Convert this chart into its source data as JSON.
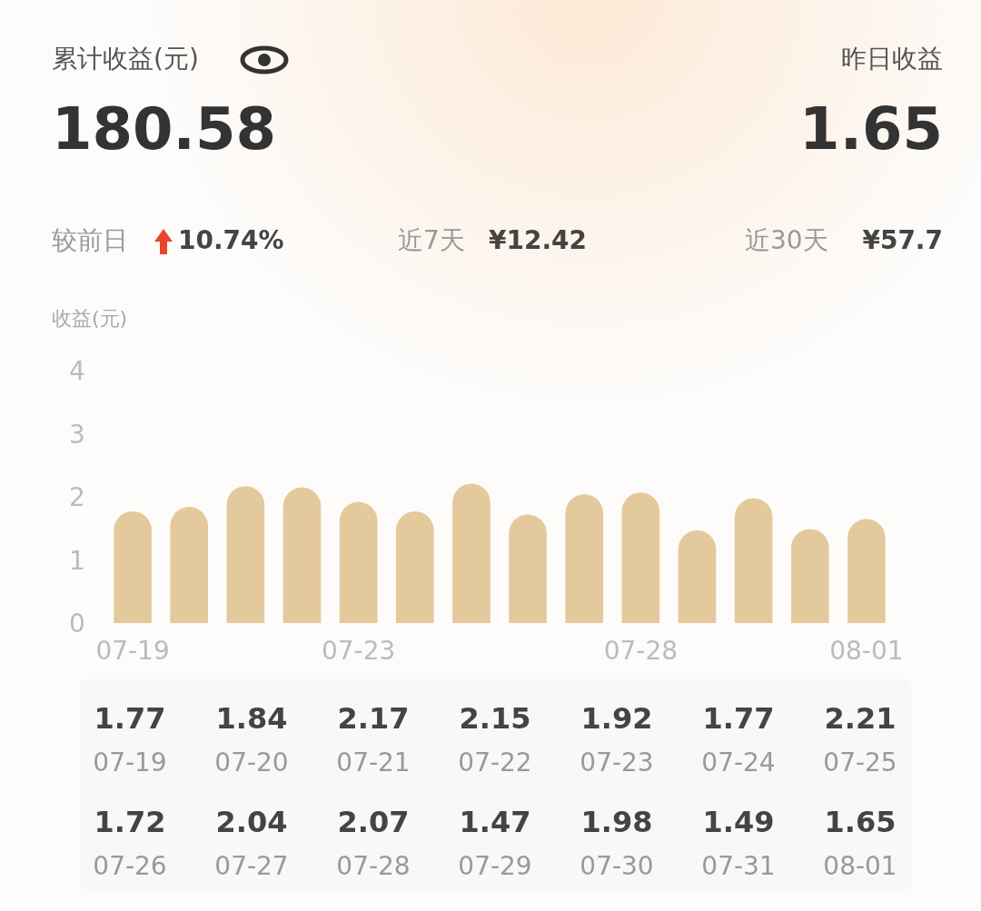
{
  "chart_data": [
    {
      "type": "other",
      "title": "累计收益(元)",
      "annotations": [
        "180.58",
        "昨日收益",
        "1.65",
        "较前日",
        "10.74%",
        "近7天",
        "¥12.42",
        "近30天",
        "¥57.7"
      ]
    },
    {
      "type": "bar",
      "ylabel": "收益(元)",
      "categories": [
        "07-19",
        null,
        null,
        null,
        "07-23",
        null,
        null,
        null,
        null,
        "07-28",
        null,
        null,
        null,
        "08-01"
      ],
      "values": [
        1.77,
        1.84,
        2.17,
        2.15,
        1.92,
        1.77,
        2.21,
        1.72,
        2.04,
        2.07,
        1.47,
        1.98,
        1.49,
        1.65
      ],
      "color": "#e4c99c",
      "ylim": [
        0,
        4
      ],
      "yticks": [
        0,
        1,
        2,
        3,
        4
      ]
    },
    {
      "type": "other",
      "annotations": [
        "1.77",
        "07-19",
        "1.84",
        "07-20",
        "2.17",
        "07-21",
        "2.15",
        "07-22",
        "1.92",
        "07-23",
        "1.77",
        "07-24",
        "2.21",
        "07-25",
        "1.72",
        "07-26",
        "2.04",
        "07-27",
        "2.07",
        "07-28",
        "1.47",
        "07-29",
        "1.98",
        "07-30",
        "1.49",
        "07-31",
        "1.65",
        "08-01"
      ]
    }
  ]
}
